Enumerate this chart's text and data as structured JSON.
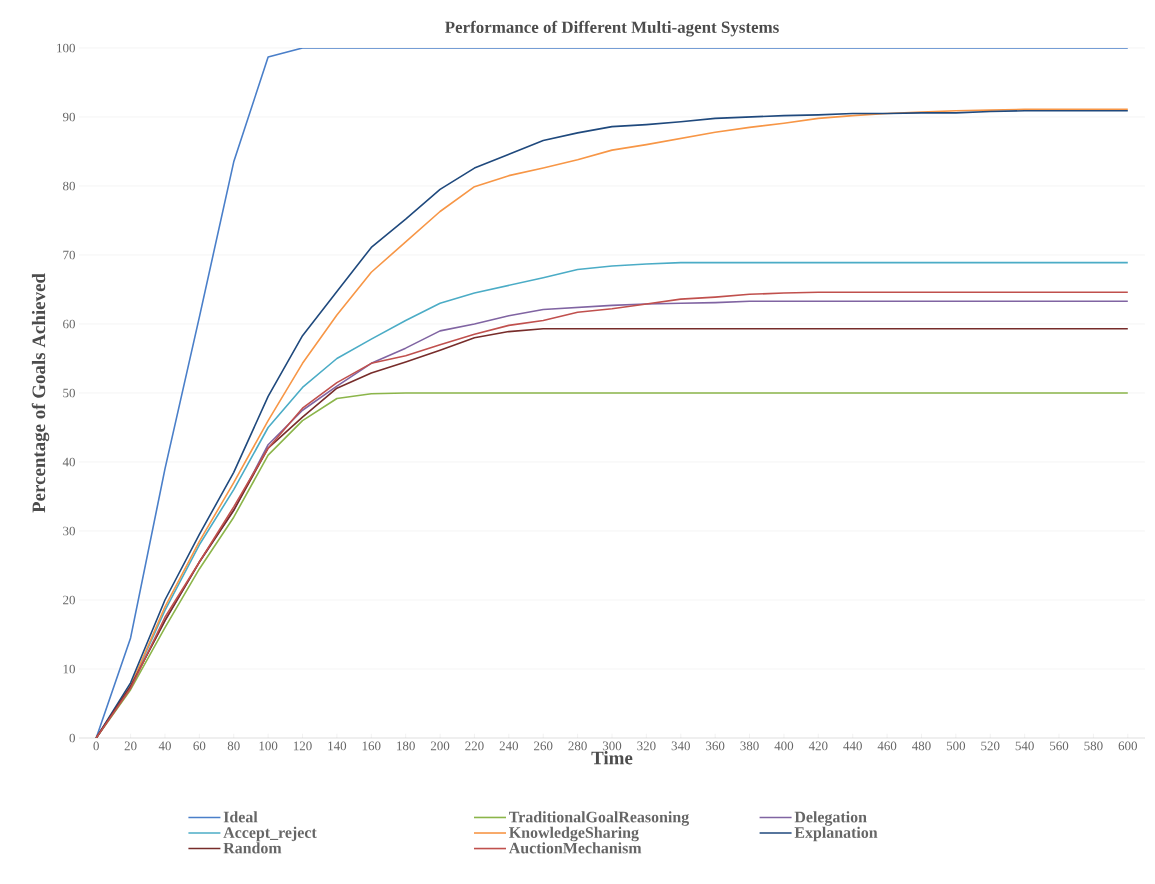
{
  "chart_data": {
    "type": "line",
    "title": "Performance of Different Multi-agent Systems",
    "xlabel": "Time",
    "ylabel": "Percentage of Goals Achieved",
    "categories": [
      "0",
      "20",
      "40",
      "60",
      "80",
      "100",
      "120",
      "140",
      "160",
      "180",
      "200",
      "220",
      "240",
      "260",
      "280",
      "300",
      "320",
      "340",
      "360",
      "380",
      "400",
      "420",
      "440",
      "460",
      "480",
      "500",
      "520",
      "540",
      "560",
      "580",
      "600"
    ],
    "ylim": [
      0,
      100
    ],
    "yticks": [
      0,
      10,
      20,
      30,
      40,
      50,
      60,
      70,
      80,
      90,
      100
    ],
    "grid": "y",
    "legend": "bottom",
    "marker": "none",
    "line_style": "solid",
    "series": [
      {
        "name": "Ideal",
        "color": "#4a7fc9",
        "values": [
          0,
          14.5,
          39,
          61,
          83.5,
          98.7,
          100,
          100,
          100,
          100,
          100,
          100,
          100,
          100,
          100,
          100,
          100,
          100,
          100,
          100,
          100,
          100,
          100,
          100,
          100,
          100,
          100,
          100,
          100,
          100,
          100
        ]
      },
      {
        "name": "TraditionalGoalReasoning",
        "color": "#8bb54a",
        "values": [
          0,
          7,
          16,
          24.5,
          32,
          41,
          46,
          49.2,
          49.9,
          50,
          50,
          50,
          50,
          50,
          50,
          50,
          50,
          50,
          50,
          50,
          50,
          50,
          50,
          50,
          50,
          50,
          50,
          50,
          50,
          50,
          50
        ]
      },
      {
        "name": "Delegation",
        "color": "#8064a2",
        "values": [
          0,
          7.5,
          17,
          25.5,
          33,
          42.5,
          47.5,
          51,
          54.3,
          56.5,
          59,
          60,
          61.2,
          62.1,
          62.4,
          62.7,
          62.9,
          63,
          63.1,
          63.3,
          63.3,
          63.3,
          63.3,
          63.3,
          63.3,
          63.3,
          63.3,
          63.3,
          63.3,
          63.3,
          63.3
        ]
      },
      {
        "name": "Accept_reject",
        "color": "#4bacc6",
        "values": [
          0,
          7.5,
          18.5,
          28,
          36,
          45,
          50.8,
          55,
          57.8,
          60.5,
          63,
          64.5,
          65.6,
          66.7,
          67.9,
          68.4,
          68.7,
          68.9,
          68.9,
          68.9,
          68.9,
          68.9,
          68.9,
          68.9,
          68.9,
          68.9,
          68.9,
          68.9,
          68.9,
          68.9,
          68.9
        ]
      },
      {
        "name": "KnowledgeSharing",
        "color": "#f79646",
        "values": [
          0,
          7.5,
          19,
          28.5,
          37,
          46,
          54.3,
          61.3,
          67.5,
          71.9,
          76.3,
          79.9,
          81.5,
          82.6,
          83.8,
          85.2,
          86,
          86.9,
          87.8,
          88.5,
          89.1,
          89.8,
          90.2,
          90.5,
          90.7,
          90.9,
          91,
          91.1,
          91.1,
          91.1,
          91.1
        ]
      },
      {
        "name": "Explanation",
        "color": "#1f497d",
        "values": [
          0,
          8,
          20,
          29.5,
          38.5,
          49.5,
          58.3,
          64.7,
          71.1,
          75.2,
          79.5,
          82.6,
          84.6,
          86.6,
          87.7,
          88.6,
          88.9,
          89.3,
          89.8,
          90,
          90.2,
          90.3,
          90.5,
          90.5,
          90.6,
          90.6,
          90.8,
          90.9,
          90.9,
          90.9,
          90.9
        ]
      },
      {
        "name": "Random",
        "color": "#772c2a",
        "values": [
          0,
          7.5,
          17,
          25.5,
          33,
          42,
          46.5,
          50.7,
          52.9,
          54.5,
          56.2,
          58,
          58.9,
          59.3,
          59.3,
          59.3,
          59.3,
          59.3,
          59.3,
          59.3,
          59.3,
          59.3,
          59.3,
          59.3,
          59.3,
          59.3,
          59.3,
          59.3,
          59.3,
          59.3,
          59.3
        ]
      },
      {
        "name": "AuctionMechanism",
        "color": "#c0504d",
        "values": [
          0,
          7.2,
          17.5,
          25.5,
          33.5,
          42,
          47.8,
          51.5,
          54.3,
          55.4,
          57,
          58.5,
          59.8,
          60.5,
          61.7,
          62.2,
          62.9,
          63.6,
          63.9,
          64.3,
          64.5,
          64.6,
          64.6,
          64.6,
          64.6,
          64.6,
          64.6,
          64.6,
          64.6,
          64.6,
          64.6
        ]
      }
    ]
  }
}
